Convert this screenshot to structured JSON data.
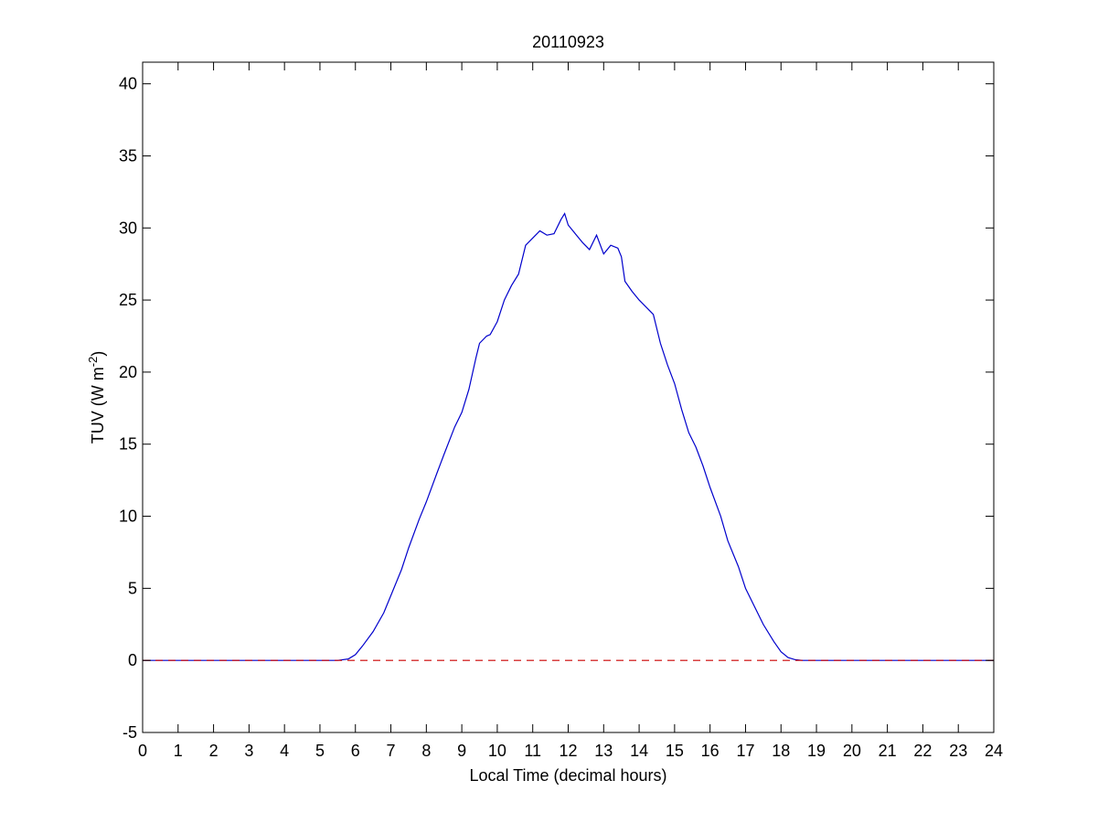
{
  "chart_data": {
    "type": "line",
    "title": "20110923",
    "xlabel": "Local Time (decimal hours)",
    "ylabel_parts": [
      "TUV (W m",
      "-2",
      ")"
    ],
    "xlim": [
      0,
      24
    ],
    "ylim": [
      -5,
      41.5
    ],
    "x_ticks": [
      0,
      1,
      2,
      3,
      4,
      5,
      6,
      7,
      8,
      9,
      10,
      11,
      12,
      13,
      14,
      15,
      16,
      17,
      18,
      19,
      20,
      21,
      22,
      23,
      24
    ],
    "y_ticks": [
      -5,
      0,
      5,
      10,
      15,
      20,
      25,
      30,
      35,
      40
    ],
    "grid": false,
    "series": [
      {
        "color": "#0000cc",
        "line_style": "solid",
        "x": [
          0,
          5.5,
          5.8,
          6.0,
          6.2,
          6.5,
          6.8,
          7.0,
          7.3,
          7.5,
          7.8,
          8.0,
          8.3,
          8.5,
          8.8,
          9.0,
          9.2,
          9.4,
          9.5,
          9.7,
          9.8,
          10.0,
          10.2,
          10.4,
          10.6,
          10.8,
          11.0,
          11.2,
          11.4,
          11.6,
          11.8,
          11.9,
          12.0,
          12.2,
          12.4,
          12.6,
          12.8,
          13.0,
          13.2,
          13.4,
          13.5,
          13.6,
          13.8,
          14.0,
          14.2,
          14.4,
          14.6,
          14.8,
          15.0,
          15.2,
          15.4,
          15.6,
          15.8,
          16.0,
          16.3,
          16.5,
          16.8,
          17.0,
          17.3,
          17.5,
          17.8,
          18.0,
          18.2,
          18.4,
          18.6,
          18.8,
          19.0,
          24
        ],
        "y": [
          0,
          0,
          0.1,
          0.4,
          1.0,
          2.0,
          3.3,
          4.5,
          6.3,
          7.8,
          9.8,
          11.0,
          13.0,
          14.3,
          16.2,
          17.2,
          18.8,
          21.0,
          22.0,
          22.5,
          22.6,
          23.5,
          25.0,
          26.0,
          26.8,
          28.8,
          29.3,
          29.8,
          29.5,
          29.6,
          30.6,
          31.0,
          30.2,
          29.6,
          29.0,
          28.5,
          29.5,
          28.2,
          28.8,
          28.6,
          28.0,
          26.3,
          25.6,
          25.0,
          24.5,
          24.0,
          22.0,
          20.5,
          19.2,
          17.4,
          15.8,
          14.8,
          13.5,
          12.0,
          10.0,
          8.3,
          6.5,
          5.0,
          3.5,
          2.5,
          1.3,
          0.6,
          0.2,
          0.05,
          0,
          0,
          0,
          0
        ]
      },
      {
        "color": "#cc0000",
        "line_style": "dashed",
        "x": [
          0,
          24
        ],
        "y": [
          0,
          0
        ]
      }
    ]
  }
}
